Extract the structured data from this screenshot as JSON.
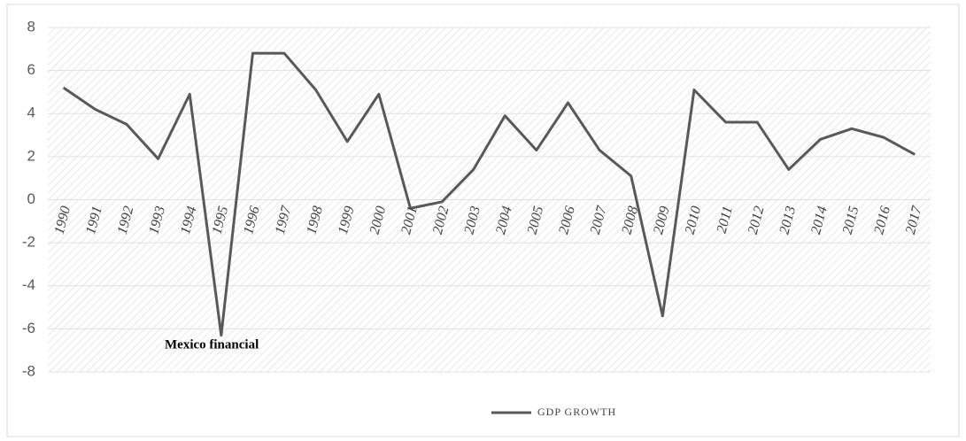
{
  "chart_data": {
    "type": "line",
    "categories": [
      "1990",
      "1991",
      "1992",
      "1993",
      "1994",
      "1995",
      "1996",
      "1997",
      "1998",
      "1999",
      "2000",
      "2001",
      "2002",
      "2003",
      "2004",
      "2005",
      "2006",
      "2007",
      "2008",
      "2009",
      "2010",
      "2011",
      "2012",
      "2013",
      "2014",
      "2015",
      "2016",
      "2017"
    ],
    "series": [
      {
        "name": "GDP GROWTH",
        "color": "#595959",
        "values": [
          5.2,
          4.2,
          3.5,
          1.9,
          4.9,
          -6.3,
          6.8,
          6.8,
          5.1,
          2.7,
          4.9,
          -0.4,
          -0.1,
          1.4,
          3.9,
          2.3,
          4.5,
          2.3,
          1.1,
          -5.4,
          5.1,
          3.6,
          3.6,
          1.4,
          2.8,
          3.3,
          2.9,
          2.1
        ]
      }
    ],
    "ylim": [
      -8,
      8
    ],
    "yticks": [
      -8,
      -6,
      -4,
      -2,
      0,
      2,
      4,
      6,
      8
    ],
    "grid": true,
    "legend": "bottom",
    "annotation": "Mexico financial"
  }
}
